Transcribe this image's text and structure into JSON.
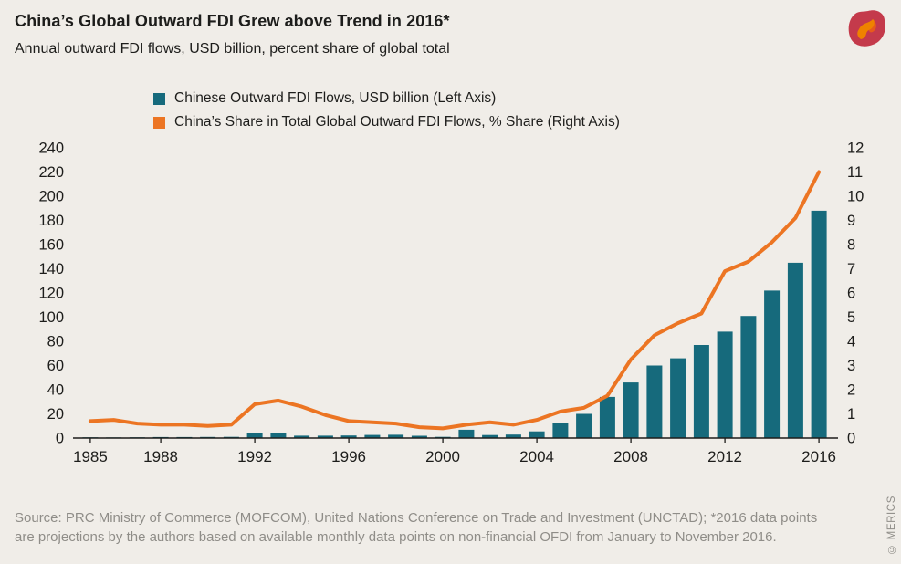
{
  "page": {
    "background": "#f0ede8",
    "title": "China’s Global Outward FDI Grew above Trend in 2016*",
    "subtitle": "Annual outward FDI flows, USD billion, percent share of global total",
    "source_line1": "Source: PRC Ministry of Commerce (MOFCOM), United Nations Conference on Trade and Investment (UNCTAD); *2016 data points",
    "source_line2": "are projections by the authors based on available monthly data points on non-financial OFDI from January to November 2016.",
    "watermark": "© MERICS"
  },
  "legend": [
    {
      "label": "Chinese Outward FDI Flows, USD billion (Left Axis)",
      "color": "#166a7c"
    },
    {
      "label": "China’s Share in Total Global Outward FDI Flows, % Share (Right Axis)",
      "color": "#ec7523"
    }
  ],
  "chart_data": {
    "type": "bar+line",
    "title": "China’s Global Outward FDI Grew above Trend in 2016*",
    "subtitle": "Annual outward FDI flows, USD billion, percent share of global total",
    "x": [
      1985,
      1986,
      1987,
      1988,
      1989,
      1990,
      1991,
      1992,
      1993,
      1994,
      1995,
      1996,
      1997,
      1998,
      1999,
      2000,
      2001,
      2002,
      2003,
      2004,
      2005,
      2006,
      2007,
      2008,
      2009,
      2010,
      2011,
      2012,
      2013,
      2014,
      2015,
      2016
    ],
    "series": [
      {
        "name": "Chinese Outward FDI Flows, USD billion",
        "type": "bar",
        "axis": "left",
        "color": "#166a7c",
        "values": [
          0.6,
          0.5,
          0.6,
          0.8,
          0.8,
          0.9,
          1.0,
          4.0,
          4.4,
          2.0,
          2.0,
          2.1,
          2.6,
          2.7,
          1.9,
          1.0,
          6.9,
          2.5,
          2.9,
          5.5,
          12.3,
          20.0,
          34.0,
          46.0,
          60.0,
          66.0,
          77.0,
          88.0,
          101.0,
          122.0,
          145.0,
          188.0
        ]
      },
      {
        "name": "China’s Share in Total Global Outward FDI Flows, % Share",
        "type": "line",
        "axis": "right",
        "color": "#ec7523",
        "values": [
          0.7,
          0.75,
          0.6,
          0.55,
          0.55,
          0.5,
          0.55,
          1.4,
          1.55,
          1.3,
          0.95,
          0.7,
          0.65,
          0.6,
          0.45,
          0.4,
          0.55,
          0.65,
          0.55,
          0.75,
          1.1,
          1.25,
          1.75,
          3.25,
          4.25,
          4.75,
          5.15,
          6.9,
          7.3,
          8.1,
          9.1,
          11.0
        ]
      }
    ],
    "left_axis": {
      "min": 0,
      "max": 240,
      "step": 20,
      "ticks": [
        0,
        20,
        40,
        60,
        80,
        100,
        120,
        140,
        160,
        180,
        200,
        220,
        240
      ]
    },
    "right_axis": {
      "min": 0,
      "max": 12,
      "step": 1,
      "ticks": [
        0,
        1,
        2,
        3,
        4,
        5,
        6,
        7,
        8,
        9,
        10,
        11,
        12
      ]
    },
    "x_tick_labels": [
      1985,
      1988,
      1992,
      1996,
      2000,
      2004,
      2008,
      2012,
      2016
    ],
    "grid": false,
    "legend_position": "top-left"
  }
}
